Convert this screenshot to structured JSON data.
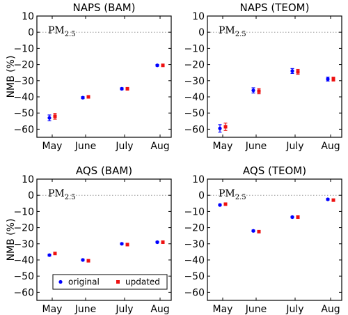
{
  "colors": {
    "original": "#0000ff",
    "updated": "#ee1111",
    "refline": "#999999"
  },
  "legend": {
    "original": "original",
    "updated": "updated",
    "placement": "lower-left"
  },
  "chart_data": [
    {
      "type": "scatter",
      "title": "NAPS (BAM)",
      "annotation": {
        "base": "PM",
        "sub": "2.5"
      },
      "ylabel": "NMB (%)",
      "ylim": [
        -65,
        10
      ],
      "yticks": [
        10,
        0,
        -10,
        -20,
        -30,
        -40,
        -50,
        -60
      ],
      "categories": [
        "May",
        "June",
        "July",
        "Aug"
      ],
      "reference_line": 0,
      "series": [
        {
          "name": "original",
          "values": [
            -53,
            -40.5,
            -35,
            -20.5
          ],
          "errors": [
            1.8,
            0.6,
            0.6,
            0.5
          ]
        },
        {
          "name": "updated",
          "values": [
            -52,
            -40,
            -35,
            -20.5
          ],
          "errors": [
            1.8,
            0.6,
            0.6,
            0.5
          ]
        }
      ]
    },
    {
      "type": "scatter",
      "title": "NAPS (TEOM)",
      "annotation": {
        "base": "PM",
        "sub": "2.5"
      },
      "ylabel": "",
      "ylim": [
        -65,
        10
      ],
      "yticks": [
        10,
        0,
        -10,
        -20,
        -30,
        -40,
        -50,
        -60
      ],
      "categories": [
        "May",
        "June",
        "July",
        "Aug"
      ],
      "reference_line": 0,
      "series": [
        {
          "name": "original",
          "values": [
            -59.5,
            -36,
            -24,
            -29
          ],
          "errors": [
            2.3,
            1.6,
            1.5,
            1.2
          ]
        },
        {
          "name": "updated",
          "values": [
            -58.5,
            -36.5,
            -24.5,
            -29
          ],
          "errors": [
            2.3,
            1.6,
            1.5,
            1.2
          ]
        }
      ]
    },
    {
      "type": "scatter",
      "title": "AQS (BAM)",
      "annotation": {
        "base": "PM",
        "sub": "2.5"
      },
      "ylabel": "NMB (%)",
      "ylim": [
        -65,
        10
      ],
      "yticks": [
        10,
        0,
        -10,
        -20,
        -30,
        -40,
        -50,
        -60
      ],
      "categories": [
        "May",
        "June",
        "July",
        "Aug"
      ],
      "reference_line": 0,
      "series": [
        {
          "name": "original",
          "values": [
            -37,
            -40,
            -30,
            -29
          ],
          "errors": [
            0.6,
            0.5,
            0.5,
            0.5
          ]
        },
        {
          "name": "updated",
          "values": [
            -36,
            -40.5,
            -30.5,
            -29
          ],
          "errors": [
            0.6,
            0.5,
            0.5,
            0.5
          ]
        }
      ]
    },
    {
      "type": "scatter",
      "title": "AQS (TEOM)",
      "annotation": {
        "base": "PM",
        "sub": "2.5"
      },
      "ylabel": "",
      "ylim": [
        -65,
        10
      ],
      "yticks": [
        10,
        0,
        -10,
        -20,
        -30,
        -40,
        -50,
        -60
      ],
      "categories": [
        "May",
        "June",
        "July",
        "Aug"
      ],
      "reference_line": 0,
      "series": [
        {
          "name": "original",
          "values": [
            -6,
            -22,
            -13.5,
            -2.5
          ],
          "errors": [
            0.5,
            0.5,
            0.5,
            0.5
          ]
        },
        {
          "name": "updated",
          "values": [
            -5.5,
            -22.5,
            -13.5,
            -3
          ],
          "errors": [
            0.5,
            0.5,
            0.5,
            0.5
          ]
        }
      ]
    }
  ]
}
